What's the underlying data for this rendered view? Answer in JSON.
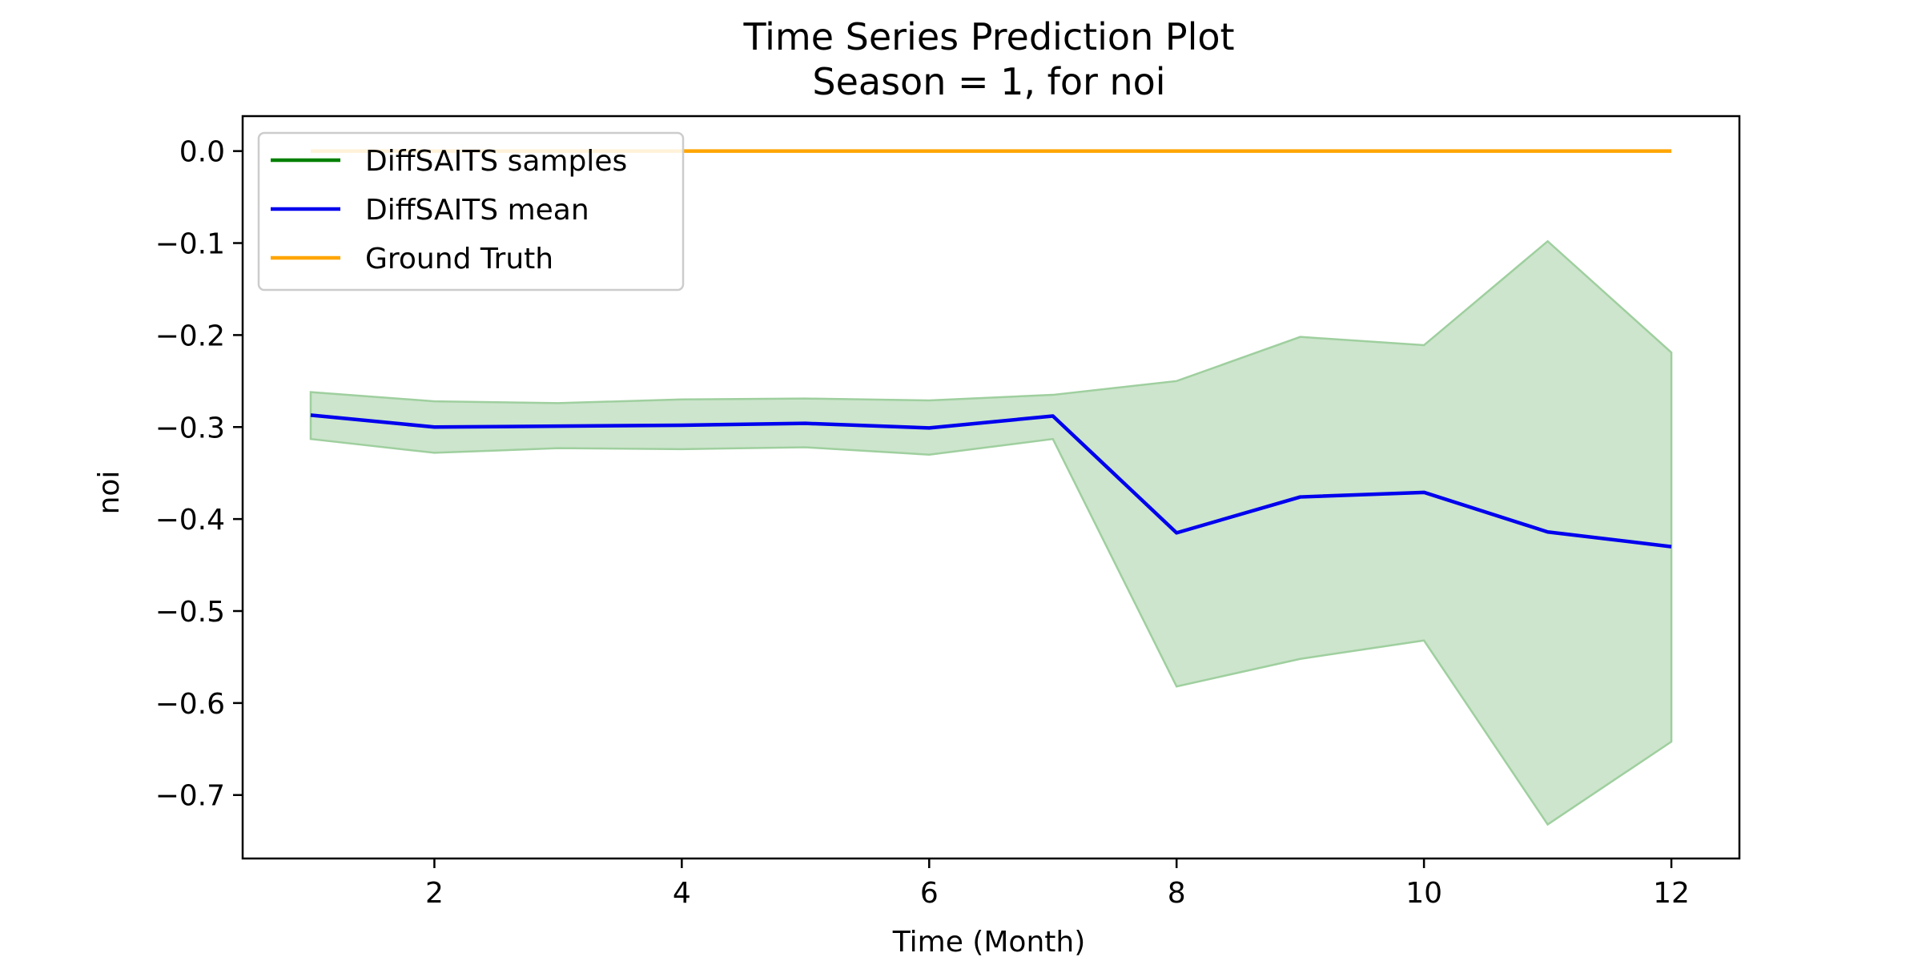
{
  "chart_data": {
    "type": "line",
    "title": "Time Series Prediction Plot",
    "subtitle": "Season = 1, for noi",
    "xlabel": "Time (Month)",
    "ylabel": "noi",
    "xlim": [
      0.45,
      12.55
    ],
    "ylim": [
      -0.769,
      0.038
    ],
    "x_ticks": [
      2,
      4,
      6,
      8,
      10,
      12
    ],
    "x_tick_labels": [
      "2",
      "4",
      "6",
      "8",
      "10",
      "12"
    ],
    "y_ticks": [
      0.0,
      -0.1,
      -0.2,
      -0.3,
      -0.4,
      -0.5,
      -0.6,
      -0.7
    ],
    "y_tick_labels": [
      "0.0",
      "−0.1",
      "−0.2",
      "−0.3",
      "−0.4",
      "−0.5",
      "−0.6",
      "−0.7"
    ],
    "grid": false,
    "legend_position": "top-left",
    "x": [
      1,
      2,
      3,
      4,
      5,
      6,
      7,
      8,
      9,
      10,
      11,
      12
    ],
    "series": [
      {
        "name": "DiffSAITS samples",
        "color": "#008000",
        "kind": "band",
        "fill_color": "#cce5cc",
        "upper": [
          -0.262,
          -0.272,
          -0.274,
          -0.27,
          -0.269,
          -0.271,
          -0.265,
          -0.25,
          -0.202,
          -0.211,
          -0.098,
          -0.219
        ],
        "lower": [
          -0.313,
          -0.328,
          -0.323,
          -0.324,
          -0.322,
          -0.33,
          -0.313,
          -0.582,
          -0.552,
          -0.532,
          -0.732,
          -0.642
        ]
      },
      {
        "name": "DiffSAITS mean",
        "color": "#0000ee",
        "kind": "line",
        "values": [
          -0.287,
          -0.3,
          -0.299,
          -0.298,
          -0.296,
          -0.301,
          -0.288,
          -0.415,
          -0.376,
          -0.371,
          -0.414,
          -0.43
        ]
      },
      {
        "name": "Ground Truth",
        "color": "#ffa500",
        "kind": "line",
        "values": [
          0.0,
          0.0,
          0.0,
          0.0,
          0.0,
          0.0,
          0.0,
          0.0,
          0.0,
          0.0,
          0.0,
          0.0
        ]
      }
    ]
  }
}
